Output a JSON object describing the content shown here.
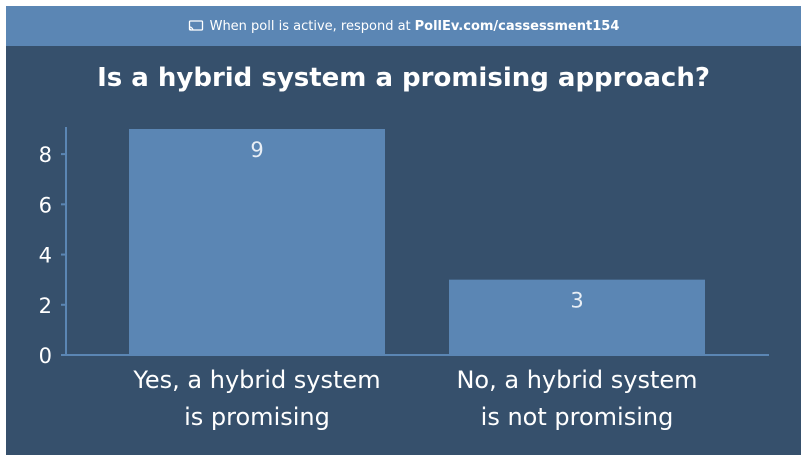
{
  "banner": {
    "text": "When poll is active, respond at",
    "url": "PollEv.com/cassessment154",
    "icon": "screen-share-icon"
  },
  "colors": {
    "background": "#36506c",
    "banner": "#5b86b4",
    "bar": "#5b86b4",
    "axis": "#5b86b4",
    "text": "#ffffff"
  },
  "chart_data": {
    "type": "bar",
    "title": "Is a hybrid system a promising approach?",
    "categories": [
      [
        "Yes, a hybrid system",
        "is promising"
      ],
      [
        "No, a hybrid system",
        "is not promising"
      ]
    ],
    "values": [
      9,
      3
    ],
    "data_labels": [
      "9",
      "3"
    ],
    "yticks": [
      0,
      2,
      4,
      6,
      8
    ],
    "ylim": [
      0,
      9
    ],
    "grid": false,
    "legend": "none"
  }
}
